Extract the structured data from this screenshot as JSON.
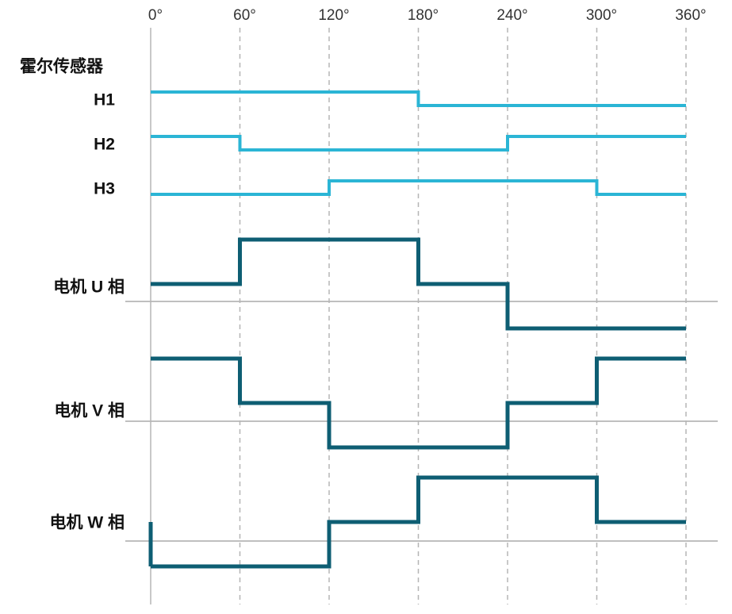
{
  "angles": [
    "0°",
    "60°",
    "120°",
    "180°",
    "240°",
    "300°",
    "360°"
  ],
  "sensor_group": "霍尔传感器",
  "hall": [
    {
      "label": "H1",
      "levels": [
        1,
        1,
        1,
        0,
        0,
        0
      ]
    },
    {
      "label": "H2",
      "levels": [
        1,
        0,
        0,
        0,
        1,
        1
      ]
    },
    {
      "label": "H3",
      "levels": [
        0,
        0,
        1,
        1,
        1,
        0
      ]
    }
  ],
  "phases": [
    {
      "label": "电机 U 相",
      "levels": [
        0,
        1,
        1,
        0,
        -1,
        -1
      ]
    },
    {
      "label": "电机 V 相",
      "levels": [
        1,
        0,
        -1,
        -1,
        0,
        1
      ]
    },
    {
      "label": "电机 W 相",
      "levels": [
        -1,
        -1,
        0,
        1,
        1,
        0
      ]
    }
  ]
}
